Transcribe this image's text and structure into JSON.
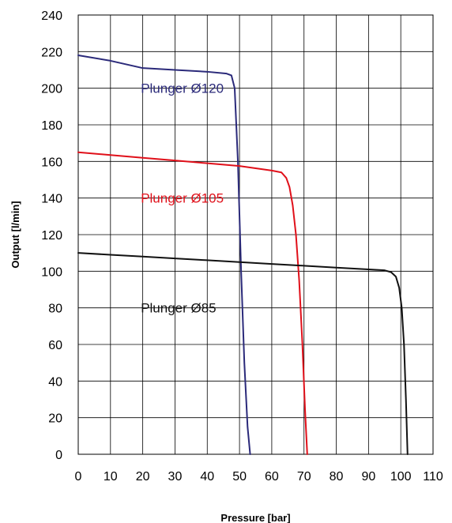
{
  "chart_data": {
    "type": "line",
    "xlabel": "Pressure [bar]",
    "ylabel": "Output [l/min]",
    "xlim": [
      0,
      110
    ],
    "ylim": [
      0,
      240
    ],
    "xticks": [
      0,
      10,
      20,
      30,
      40,
      50,
      60,
      70,
      80,
      90,
      100,
      110
    ],
    "yticks": [
      0,
      20,
      40,
      60,
      80,
      100,
      120,
      140,
      160,
      180,
      200,
      220,
      240
    ],
    "grid": true,
    "legend": "none",
    "series": [
      {
        "name": "Plunger Ø120",
        "color": "#2b2a7a",
        "x": [
          0,
          10,
          20,
          30,
          40,
          46,
          47.5,
          48.5,
          49.5,
          50.5,
          51.5,
          52.5,
          53.3
        ],
        "y": [
          218,
          215,
          211,
          210,
          209,
          208,
          207,
          200,
          160,
          100,
          50,
          15,
          0
        ]
      },
      {
        "name": "Plunger Ø105",
        "color": "#e0101a",
        "x": [
          0,
          10,
          20,
          30,
          40,
          50,
          60,
          63,
          64.5,
          65.5,
          66.5,
          67.5,
          68.5,
          69.5,
          70.3,
          71
        ],
        "y": [
          165,
          163.5,
          162,
          160.5,
          159,
          157.5,
          155,
          154,
          151,
          146,
          136,
          120,
          95,
          60,
          25,
          0
        ]
      },
      {
        "name": "Plunger Ø85",
        "color": "#111111",
        "x": [
          0,
          10,
          20,
          30,
          40,
          50,
          60,
          70,
          80,
          90,
          95,
          97,
          98.5,
          99.5,
          100.3,
          101,
          101.6,
          102.1
        ],
        "y": [
          110,
          109,
          108,
          107,
          106,
          105,
          104,
          103,
          102,
          101,
          100.5,
          99.5,
          97,
          91,
          80,
          60,
          30,
          0
        ]
      }
    ],
    "annotations": [
      {
        "text": "Plunger Ø120",
        "x": 39,
        "y": 200,
        "color": "#2b2a7a"
      },
      {
        "text": "Plunger Ø105",
        "x": 39,
        "y": 140,
        "color": "#e0101a"
      },
      {
        "text": "Plunger Ø85",
        "x": 39,
        "y": 80,
        "color": "#111111"
      }
    ]
  }
}
